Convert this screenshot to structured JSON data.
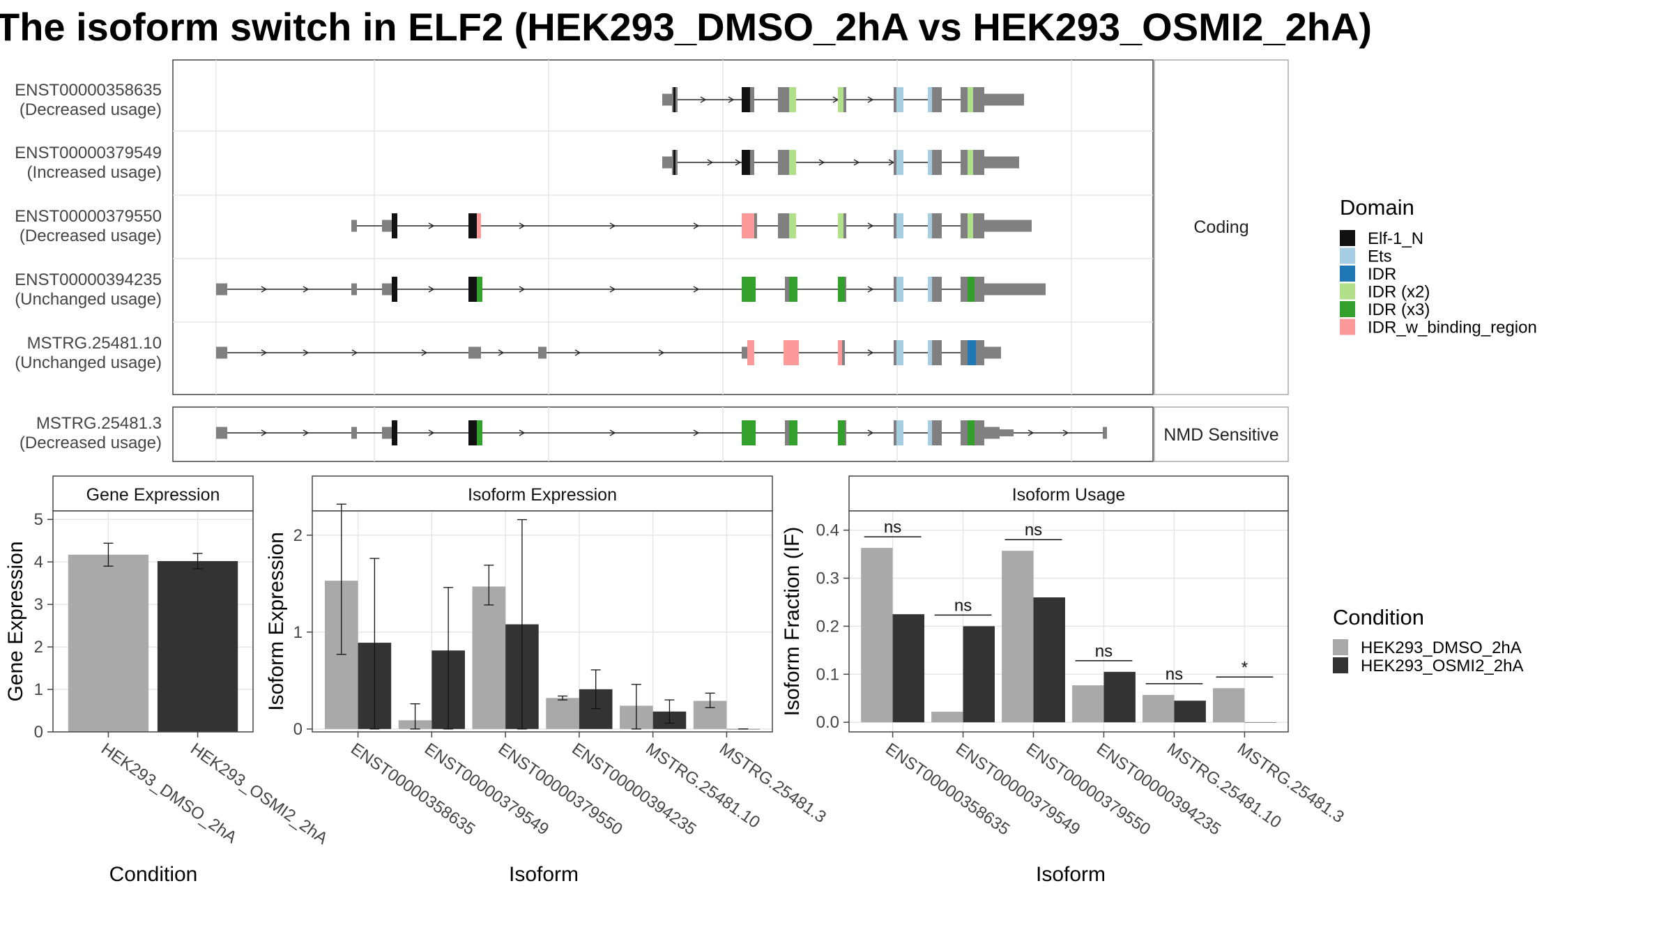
{
  "title": "The isoform switch in ELF2 (HEK293_DMSO_2hA vs HEK293_OSMI2_2hA)",
  "colors": {
    "exon_gray": "#808080",
    "intron": "#222222",
    "panel_border": "#444444",
    "grid": "#e6e6e6",
    "strip_fill": "#ffffff",
    "dmso": "#a9a9a9",
    "osmi": "#333333"
  },
  "chart_data": [
    {
      "type": "table",
      "name": "isoform_structure",
      "description_source": "transcript structure panel",
      "facets": [
        "Coding",
        "NMD Sensitive"
      ],
      "isoforms": [
        {
          "id": "ENST00000358635",
          "usage": "(Decreased usage)",
          "facet": "Coding"
        },
        {
          "id": "ENST00000379549",
          "usage": "(Increased usage)",
          "facet": "Coding"
        },
        {
          "id": "ENST00000379550",
          "usage": "(Decreased usage)",
          "facet": "Coding"
        },
        {
          "id": "ENST00000394235",
          "usage": "(Unchanged usage)",
          "facet": "Coding"
        },
        {
          "id": "MSTRG.25481.10",
          "usage": "(Unchanged usage)",
          "facet": "Coding"
        },
        {
          "id": "MSTRG.25481.3",
          "usage": "(Decreased usage)",
          "facet": "NMD Sensitive"
        }
      ],
      "legend_title": "Domain",
      "domains": [
        {
          "name": "Elf-1_N",
          "color": "#111111"
        },
        {
          "name": "Ets",
          "color": "#a6cee3"
        },
        {
          "name": "IDR",
          "color": "#1f78b4"
        },
        {
          "name": "IDR (x2)",
          "color": "#b2df8a"
        },
        {
          "name": "IDR (x3)",
          "color": "#33a02c"
        },
        {
          "name": "IDR_w_binding_region",
          "color": "#fb9a99"
        }
      ]
    },
    {
      "type": "bar",
      "name": "gene_expression",
      "title": "Gene Expression",
      "xlabel": "Condition",
      "ylabel": "Gene Expression",
      "ylim": [
        0,
        5.2
      ],
      "yticks": [
        0,
        1,
        2,
        3,
        4,
        5
      ],
      "categories": [
        "HEK293_DMSO_2hA",
        "HEK293_OSMI2_2hA"
      ],
      "values": [
        4.17,
        4.02
      ],
      "errors": [
        [
          3.9,
          4.44
        ],
        [
          3.84,
          4.2
        ]
      ],
      "grid": true
    },
    {
      "type": "bar",
      "name": "isoform_expression",
      "title": "Isoform Expression",
      "xlabel": "Isoform",
      "ylabel": "Isoform Expression",
      "ylim": [
        -0.03,
        2.25
      ],
      "yticks": [
        0,
        1,
        2
      ],
      "categories": [
        "ENST00000358635",
        "ENST00000379549",
        "ENST00000379550",
        "ENST00000394235",
        "MSTRG.25481.10",
        "MSTRG.25481.3"
      ],
      "series": [
        {
          "name": "HEK293_DMSO_2hA",
          "values": [
            1.53,
            0.09,
            1.47,
            0.32,
            0.24,
            0.29
          ],
          "errors": [
            [
              0.77,
              2.32
            ],
            [
              0.0,
              0.26
            ],
            [
              1.28,
              1.69
            ],
            [
              0.3,
              0.34
            ],
            [
              0.0,
              0.46
            ],
            [
              0.22,
              0.37
            ]
          ]
        },
        {
          "name": "HEK293_OSMI2_2hA",
          "values": [
            0.89,
            0.81,
            1.08,
            0.41,
            0.18,
            0.0
          ],
          "errors": [
            [
              0.0,
              1.76
            ],
            [
              0.0,
              1.46
            ],
            [
              0.0,
              2.16
            ],
            [
              0.21,
              0.61
            ],
            [
              0.06,
              0.3
            ],
            [
              0.0,
              0.0
            ]
          ]
        }
      ],
      "grid": true
    },
    {
      "type": "bar",
      "name": "isoform_usage",
      "title": "Isoform Usage",
      "xlabel": "Isoform",
      "ylabel": "Isoform Fraction (IF)",
      "ylim": [
        -0.02,
        0.44
      ],
      "yticks": [
        "0.0",
        "0.1",
        "0.2",
        "0.3",
        "0.4"
      ],
      "categories": [
        "ENST00000358635",
        "ENST00000379549",
        "ENST00000379550",
        "ENST00000394235",
        "MSTRG.25481.10",
        "MSTRG.25481.3"
      ],
      "series": [
        {
          "name": "HEK293_DMSO_2hA",
          "values": [
            0.363,
            0.022,
            0.357,
            0.077,
            0.057,
            0.071
          ]
        },
        {
          "name": "HEK293_OSMI2_2hA",
          "values": [
            0.225,
            0.2,
            0.26,
            0.105,
            0.045,
            0.0
          ]
        }
      ],
      "significance": [
        "ns",
        "ns",
        "ns",
        "ns",
        "ns",
        "*"
      ],
      "grid": true
    }
  ],
  "condition_legend": {
    "title": "Condition",
    "items": [
      {
        "label": "HEK293_DMSO_2hA",
        "color": "#a9a9a9"
      },
      {
        "label": "HEK293_OSMI2_2hA",
        "color": "#333333"
      }
    ]
  }
}
